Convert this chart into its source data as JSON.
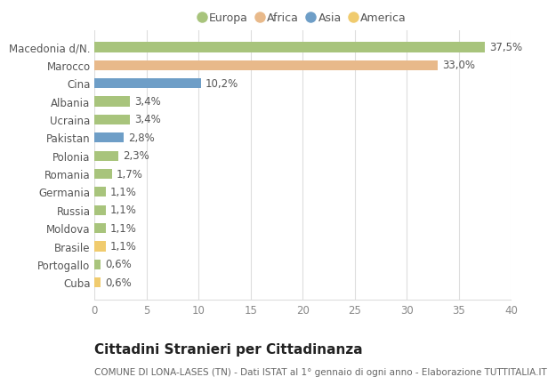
{
  "categories": [
    "Macedonia d/N.",
    "Marocco",
    "Cina",
    "Albania",
    "Ucraina",
    "Pakistan",
    "Polonia",
    "Romania",
    "Germania",
    "Russia",
    "Moldova",
    "Brasile",
    "Portogallo",
    "Cuba"
  ],
  "values": [
    37.5,
    33.0,
    10.2,
    3.4,
    3.4,
    2.8,
    2.3,
    1.7,
    1.1,
    1.1,
    1.1,
    1.1,
    0.6,
    0.6
  ],
  "labels": [
    "37,5%",
    "33,0%",
    "10,2%",
    "3,4%",
    "3,4%",
    "2,8%",
    "2,3%",
    "1,7%",
    "1,1%",
    "1,1%",
    "1,1%",
    "1,1%",
    "0,6%",
    "0,6%"
  ],
  "continents": [
    "Europa",
    "Africa",
    "Asia",
    "Europa",
    "Europa",
    "Asia",
    "Europa",
    "Europa",
    "Europa",
    "Europa",
    "Europa",
    "America",
    "Europa",
    "America"
  ],
  "colors": {
    "Europa": "#a8c47c",
    "Africa": "#e8b98a",
    "Asia": "#6e9ec7",
    "America": "#f0cb6e"
  },
  "legend_order": [
    "Europa",
    "Africa",
    "Asia",
    "America"
  ],
  "legend_colors": [
    "#a8c47c",
    "#e8b98a",
    "#6e9ec7",
    "#f0cb6e"
  ],
  "xlim": [
    0,
    40
  ],
  "xticks": [
    0,
    5,
    10,
    15,
    20,
    25,
    30,
    35,
    40
  ],
  "title": "Cittadini Stranieri per Cittadinanza",
  "subtitle": "COMUNE DI LONA-LASES (TN) - Dati ISTAT al 1° gennaio di ogni anno - Elaborazione TUTTITALIA.IT",
  "background_color": "#ffffff",
  "plot_bg_color": "#ffffff",
  "grid_color": "#dddddd",
  "bar_height": 0.55,
  "label_fontsize": 8.5,
  "tick_fontsize": 8.5,
  "title_fontsize": 11,
  "subtitle_fontsize": 7.5
}
